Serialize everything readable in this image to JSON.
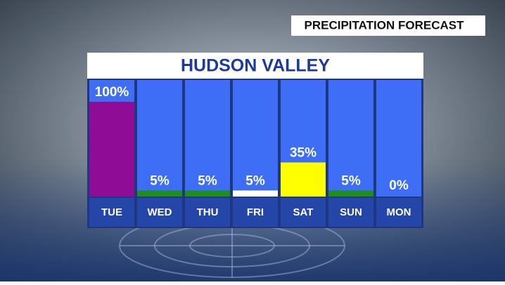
{
  "chart_data": {
    "type": "bar",
    "title": "PRECIPITATION FORECAST",
    "subtitle": "HUDSON VALLEY",
    "categories": [
      "TUE",
      "WED",
      "THU",
      "FRI",
      "SAT",
      "SUN",
      "MON"
    ],
    "values": [
      100,
      5,
      5,
      5,
      35,
      5,
      0
    ],
    "value_labels": [
      "100%",
      "5%",
      "5%",
      "5%",
      "35%",
      "5%",
      "0%"
    ],
    "colors": [
      "#8e0c96",
      "#1c8f1f",
      "#1c8f1f",
      "#ffffff",
      "#ffff00",
      "#1c8f1f",
      "#ffffff"
    ],
    "ylim": [
      0,
      100
    ]
  }
}
